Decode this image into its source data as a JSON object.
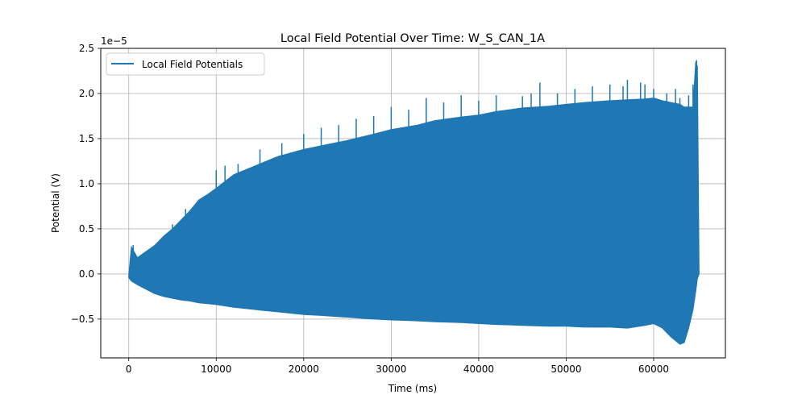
{
  "chart_data": {
    "type": "line",
    "title": "Local Field Potential Over Time: W_S_CAN_1A",
    "xlabel": "Time (ms)",
    "ylabel": "Potential (V)",
    "y_scale_label": "1e−5",
    "xlim": [
      -3200,
      68200
    ],
    "ylim": [
      -0.93,
      2.5
    ],
    "x_ticks": [
      0,
      10000,
      20000,
      30000,
      40000,
      50000,
      60000
    ],
    "x_tick_labels": [
      "0",
      "10000",
      "20000",
      "30000",
      "40000",
      "50000",
      "60000"
    ],
    "y_ticks": [
      -0.5,
      0.0,
      0.5,
      1.0,
      1.5,
      2.0,
      2.5
    ],
    "y_tick_labels": [
      "−0.5",
      "0.0",
      "0.5",
      "1.0",
      "1.5",
      "2.0",
      "2.5"
    ],
    "grid": true,
    "legend_position": "upper-left",
    "color": "#1f77b4",
    "series": [
      {
        "name": "Local Field Potentials",
        "x": [
          0,
          300,
          1000,
          2000,
          3000,
          4000,
          5000,
          6000,
          7000,
          8000,
          9000,
          10000,
          12000,
          14000,
          15000,
          17000,
          20000,
          22000,
          25000,
          28000,
          30000,
          33000,
          35000,
          38000,
          40000,
          42000,
          45000,
          48000,
          50000,
          52000,
          55000,
          57000,
          59000,
          60000,
          61000,
          62000,
          63000,
          63500,
          64000,
          64500,
          64800,
          65000,
          65200
        ],
        "upper": [
          -0.02,
          0.3,
          0.18,
          0.25,
          0.32,
          0.42,
          0.5,
          0.6,
          0.7,
          0.82,
          0.88,
          0.95,
          1.1,
          1.18,
          1.22,
          1.3,
          1.38,
          1.42,
          1.48,
          1.55,
          1.6,
          1.65,
          1.7,
          1.74,
          1.76,
          1.8,
          1.84,
          1.86,
          1.88,
          1.9,
          1.92,
          1.93,
          1.94,
          1.95,
          1.92,
          1.9,
          1.88,
          1.85,
          1.85,
          1.85,
          2.35,
          2.3,
          0.0
        ],
        "lower": [
          -0.04,
          -0.08,
          -0.12,
          -0.17,
          -0.22,
          -0.25,
          -0.27,
          -0.29,
          -0.3,
          -0.32,
          -0.33,
          -0.34,
          -0.37,
          -0.39,
          -0.4,
          -0.42,
          -0.45,
          -0.46,
          -0.48,
          -0.5,
          -0.51,
          -0.52,
          -0.53,
          -0.54,
          -0.55,
          -0.56,
          -0.57,
          -0.58,
          -0.58,
          -0.59,
          -0.59,
          -0.6,
          -0.57,
          -0.55,
          -0.6,
          -0.7,
          -0.78,
          -0.76,
          -0.6,
          -0.4,
          -0.2,
          -0.05,
          0.0
        ],
        "peaks": [
          [
            0,
            -0.03
          ],
          [
            500,
            0.32
          ],
          [
            3000,
            0.32
          ],
          [
            5000,
            0.55
          ],
          [
            6500,
            0.72
          ],
          [
            8000,
            0.82
          ],
          [
            10000,
            1.15
          ],
          [
            11000,
            1.2
          ],
          [
            12500,
            1.22
          ],
          [
            15000,
            1.38
          ],
          [
            17500,
            1.45
          ],
          [
            20000,
            1.55
          ],
          [
            22000,
            1.62
          ],
          [
            24000,
            1.65
          ],
          [
            26000,
            1.72
          ],
          [
            28000,
            1.75
          ],
          [
            30000,
            1.85
          ],
          [
            32000,
            1.82
          ],
          [
            34000,
            1.95
          ],
          [
            36000,
            1.9
          ],
          [
            38000,
            1.98
          ],
          [
            40000,
            1.92
          ],
          [
            42000,
            1.98
          ],
          [
            45000,
            1.97
          ],
          [
            46000,
            2.0
          ],
          [
            47000,
            2.12
          ],
          [
            49000,
            2.0
          ],
          [
            51000,
            2.05
          ],
          [
            53000,
            2.08
          ],
          [
            55000,
            2.1
          ],
          [
            56500,
            2.08
          ],
          [
            57000,
            2.15
          ],
          [
            58500,
            2.12
          ],
          [
            59000,
            2.1
          ],
          [
            60000,
            2.05
          ],
          [
            61500,
            2.0
          ],
          [
            62500,
            2.05
          ],
          [
            63000,
            1.95
          ],
          [
            64000,
            1.98
          ],
          [
            64500,
            2.1
          ],
          [
            64900,
            2.37
          ]
        ]
      }
    ]
  }
}
